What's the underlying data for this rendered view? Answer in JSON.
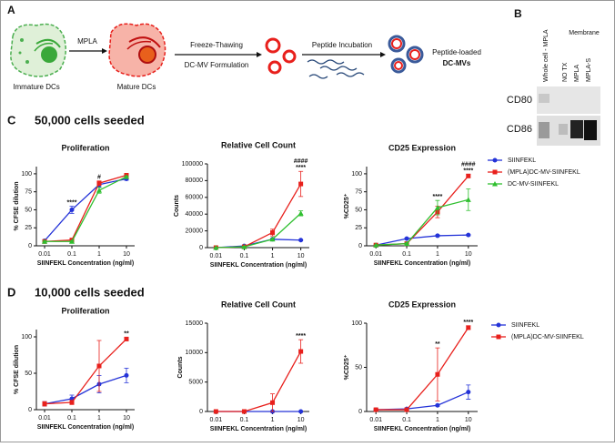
{
  "figure": {
    "panel_a": {
      "label": "A",
      "step1": "MPLA",
      "cell1": "Immature DCs",
      "cell2": "Mature DCs",
      "step2a": "Freeze-Thawing",
      "step2b": "DC-MV Formulation",
      "step3": "Peptide Incubation",
      "product1": "Peptide-loaded",
      "product2": "DC-MVs"
    },
    "panel_b": {
      "label": "B",
      "lane1": "Whole cell - MPLA",
      "group": "Membrane",
      "lane2": "NO TX",
      "lane3": "MPLA",
      "lane4": "MPLA-S",
      "row1": "CD80",
      "row2": "CD86"
    },
    "panel_c": {
      "label": "C",
      "title": "50,000 cells seeded"
    },
    "panel_d": {
      "label": "D",
      "title": "10,000 cells seeded"
    }
  },
  "chart_data": [
    {
      "type": "line",
      "title": "Proliferation",
      "xlabel": "SIINFEKL Concentration (ng/ml)",
      "ylabel": "% CFSE dilution",
      "xscale": "log",
      "x": [
        0.01,
        0.1,
        1,
        10
      ],
      "xlim": [
        0.005,
        20
      ],
      "xticks": [
        0.01,
        0.1,
        1,
        10
      ],
      "ylim": [
        0,
        110
      ],
      "yticks": [
        0,
        25,
        50,
        75,
        100
      ],
      "legend": false,
      "series": [
        {
          "color": "#2433d8",
          "marker": "circle",
          "values": [
            7,
            50,
            85,
            93
          ],
          "errors": [
            1,
            5,
            3,
            2
          ]
        },
        {
          "color": "#e8201c",
          "marker": "square",
          "values": [
            6,
            8,
            87,
            98
          ],
          "errors": [
            1,
            1,
            3,
            1
          ]
        },
        {
          "color": "#2fbf2f",
          "marker": "triangle",
          "values": [
            6,
            6,
            77,
            96
          ],
          "errors": [
            1,
            1,
            4,
            1
          ]
        }
      ],
      "annotations": [
        {
          "x": 0.1,
          "text": "****"
        },
        {
          "x": 1,
          "text": "#"
        }
      ]
    },
    {
      "type": "line",
      "title": "Relative Cell Count",
      "xlabel": "SIINFEKL Concentration (ng/ml)",
      "ylabel": "Counts",
      "xscale": "log",
      "x": [
        0.01,
        0.1,
        1,
        10
      ],
      "xlim": [
        0.005,
        20
      ],
      "xticks": [
        0.01,
        0.1,
        1,
        10
      ],
      "ylim": [
        0,
        100000
      ],
      "yticks": [
        0,
        20000,
        40000,
        60000,
        80000,
        100000
      ],
      "legend": false,
      "series": [
        {
          "color": "#2433d8",
          "marker": "circle",
          "values": [
            0,
            2000,
            10000,
            9000
          ],
          "errors": [
            0,
            500,
            1000,
            500
          ]
        },
        {
          "color": "#e8201c",
          "marker": "square",
          "values": [
            0,
            1000,
            18000,
            76000
          ],
          "errors": [
            0,
            500,
            4000,
            15000
          ]
        },
        {
          "color": "#2fbf2f",
          "marker": "triangle",
          "values": [
            0,
            1000,
            10000,
            41000
          ],
          "errors": [
            0,
            500,
            1000,
            3000
          ]
        }
      ],
      "annotations": [
        {
          "x": 10,
          "text": "****"
        },
        {
          "x": 10,
          "text": "####"
        }
      ]
    },
    {
      "type": "line",
      "title": "CD25 Expression",
      "xlabel": "SIINFEKL Concentration (ng/ml)",
      "ylabel": "%CD25⁺",
      "xscale": "log",
      "x": [
        0.01,
        0.1,
        1,
        10
      ],
      "xlim": [
        0.005,
        20
      ],
      "xticks": [
        0.01,
        0.1,
        1,
        10
      ],
      "ylim": [
        0,
        110
      ],
      "yticks": [
        0,
        25,
        50,
        75,
        100
      ],
      "legend": true,
      "series": [
        {
          "name": "SIINFEKL",
          "color": "#2433d8",
          "marker": "circle",
          "values": [
            1,
            10,
            14,
            15
          ],
          "errors": [
            0,
            1,
            1,
            1
          ]
        },
        {
          "name": "(MPLA)DC-MV-SIINFEKL",
          "color": "#e8201c",
          "marker": "square",
          "values": [
            1,
            3,
            47,
            97
          ],
          "errors": [
            0,
            1,
            8,
            2
          ]
        },
        {
          "name": "DC-MV-SIINFEKL",
          "color": "#2fbf2f",
          "marker": "triangle",
          "values": [
            1,
            3,
            53,
            64
          ],
          "errors": [
            0,
            1,
            10,
            15
          ]
        }
      ],
      "annotations": [
        {
          "x": 1,
          "text": "****"
        },
        {
          "x": 10,
          "text": "****"
        },
        {
          "x": 10,
          "text": "####"
        }
      ]
    },
    {
      "type": "line",
      "title": "Proliferation",
      "xlabel": "SIINFEKL Concentration (ng/ml)",
      "ylabel": "% CFSE dilution",
      "xscale": "log",
      "x": [
        0.01,
        0.1,
        1,
        10
      ],
      "xlim": [
        0.005,
        20
      ],
      "xticks": [
        0.01,
        0.1,
        1,
        10
      ],
      "ylim": [
        0,
        110
      ],
      "yticks": [
        0,
        50,
        100
      ],
      "legend": false,
      "series": [
        {
          "color": "#2433d8",
          "marker": "circle",
          "values": [
            8,
            15,
            35,
            47
          ],
          "errors": [
            3,
            5,
            12,
            10
          ]
        },
        {
          "color": "#e8201c",
          "marker": "square",
          "values": [
            8,
            10,
            60,
            97
          ],
          "errors": [
            3,
            3,
            35,
            2
          ]
        }
      ],
      "annotations": [
        {
          "x": 10,
          "text": "**"
        }
      ]
    },
    {
      "type": "line",
      "title": "Relative Cell Count",
      "xlabel": "SIINFEKL Concentration (ng/ml)",
      "ylabel": "Counts",
      "xscale": "log",
      "x": [
        0.01,
        0.1,
        1,
        10
      ],
      "xlim": [
        0.005,
        20
      ],
      "xticks": [
        0.01,
        0.1,
        1,
        10
      ],
      "ylim": [
        0,
        15000
      ],
      "yticks": [
        0,
        5000,
        10000,
        15000
      ],
      "legend": false,
      "series": [
        {
          "color": "#2433d8",
          "marker": "circle",
          "values": [
            0,
            0,
            0,
            0
          ],
          "errors": [
            0,
            0,
            0,
            0
          ]
        },
        {
          "color": "#e8201c",
          "marker": "square",
          "values": [
            0,
            0,
            1500,
            10200
          ],
          "errors": [
            0,
            0,
            1500,
            2000
          ]
        }
      ],
      "annotations": [
        {
          "x": 10,
          "text": "****"
        }
      ]
    },
    {
      "type": "line",
      "title": "CD25 Expression",
      "xlabel": "SIINFEKL Concentration (ng/ml)",
      "ylabel": "%CD25⁺",
      "xscale": "log",
      "x": [
        0.01,
        0.1,
        1,
        10
      ],
      "xlim": [
        0.005,
        20
      ],
      "xticks": [
        0.01,
        0.1,
        1,
        10
      ],
      "ylim": [
        0,
        100
      ],
      "yticks": [
        0,
        50,
        100
      ],
      "legend": true,
      "series": [
        {
          "name": "SIINFEKL",
          "color": "#2433d8",
          "marker": "circle",
          "values": [
            2,
            3,
            7,
            22
          ],
          "errors": [
            1,
            1,
            1,
            8
          ]
        },
        {
          "name": "(MPLA)DC-MV-SIINFEKL",
          "color": "#e8201c",
          "marker": "square",
          "values": [
            2,
            2,
            42,
            95
          ],
          "errors": [
            1,
            1,
            30,
            2
          ]
        }
      ],
      "annotations": [
        {
          "x": 1,
          "text": "**"
        },
        {
          "x": 10,
          "text": "****"
        }
      ]
    }
  ]
}
